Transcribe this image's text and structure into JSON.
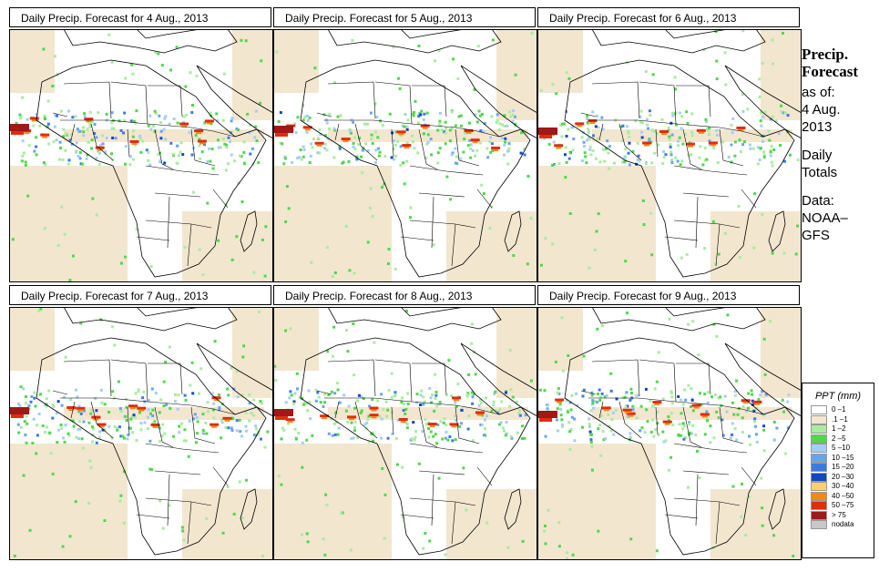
{
  "panels": [
    {
      "title": "Daily Precip. Forecast for  4 Aug., 2013"
    },
    {
      "title": "Daily Precip. Forecast for  5 Aug., 2013"
    },
    {
      "title": "Daily Precip. Forecast for  6 Aug., 2013"
    },
    {
      "title": "Daily Precip. Forecast for  7 Aug., 2013"
    },
    {
      "title": "Daily Precip. Forecast for  8 Aug., 2013"
    },
    {
      "title": "Daily Precip. Forecast for  9 Aug., 2013"
    }
  ],
  "side": {
    "heading1": "Precip.",
    "heading2": "Forecast",
    "asof": "as of:",
    "date1": "4 Aug.",
    "date2": "2013",
    "daily1": "Daily",
    "daily2": "Totals",
    "data1": "Data:",
    "data2": "NOAA–",
    "data3": "GFS"
  },
  "legend": {
    "title": "PPT (mm)",
    "items": [
      {
        "label": "0 –1",
        "color": "#ffffff"
      },
      {
        "label": ".1 –1",
        "color": "#f2e6cf"
      },
      {
        "label": "1 –2",
        "color": "#a8eca0"
      },
      {
        "label": "2 –5",
        "color": "#4fd84a"
      },
      {
        "label": "5 –10",
        "color": "#a4cdf7"
      },
      {
        "label": "10 –15",
        "color": "#68a4ee"
      },
      {
        "label": "15 –20",
        "color": "#3a78e6"
      },
      {
        "label": "20 –30",
        "color": "#1346c0"
      },
      {
        "label": "30 –40",
        "color": "#f7d36a"
      },
      {
        "label": "40 –50",
        "color": "#f08a10"
      },
      {
        "label": "50 –75",
        "color": "#e02c10"
      },
      {
        "label": "> 75",
        "color": "#a01818"
      },
      {
        "label": "nodata",
        "color": "#c8c8c8"
      }
    ]
  }
}
